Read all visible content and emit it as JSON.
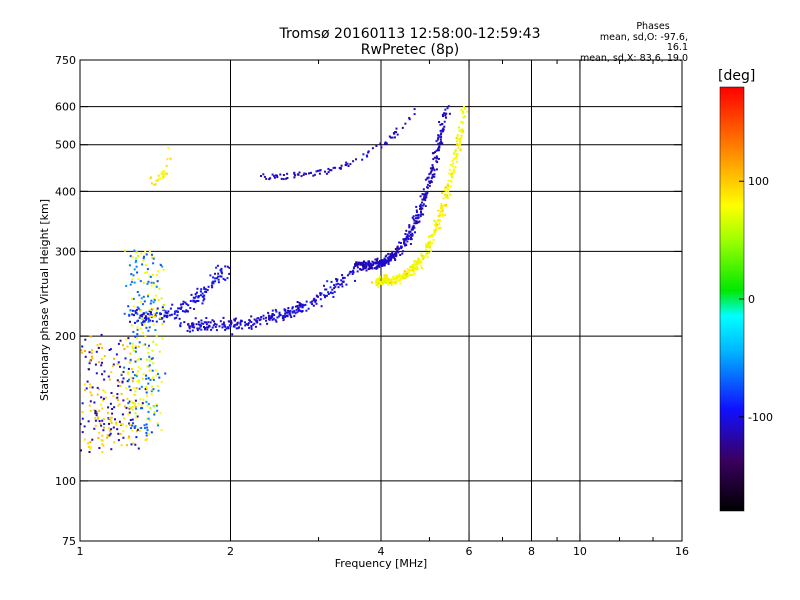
{
  "title": {
    "line1": "Tromsø 20160113 12:58:00-12:59:43",
    "line2": "RwPretec (8p)"
  },
  "phase_info": {
    "title": "Phases",
    "line_o": "mean, sd,O: -97.6, 16.1",
    "line_x": "mean, sd,X: 83.6, 19.0"
  },
  "colorbar": {
    "unit": "[deg]",
    "range": [
      -180,
      180
    ],
    "ticks": [
      {
        "value": 100,
        "label": "100"
      },
      {
        "value": 0,
        "label": "0"
      },
      {
        "value": -100,
        "label": "-100"
      }
    ]
  },
  "chart_data": {
    "type": "scatter",
    "xlabel": "Frequency [MHz]",
    "ylabel": "Stationary phase Virtual Height [km]",
    "xscale": "log",
    "yscale": "log",
    "xlim": [
      1,
      16
    ],
    "ylim": [
      75,
      750
    ],
    "xticks": [
      {
        "value": 1,
        "label": "1"
      },
      {
        "value": 2,
        "label": "2"
      },
      {
        "value": 4,
        "label": "4"
      },
      {
        "value": 6,
        "label": "6"
      },
      {
        "value": 8,
        "label": "8"
      },
      {
        "value": 10,
        "label": "10"
      },
      {
        "value": 16,
        "label": "16"
      }
    ],
    "yticks": [
      {
        "value": 75,
        "label": "75"
      },
      {
        "value": 100,
        "label": "100"
      },
      {
        "value": 200,
        "label": "200"
      },
      {
        "value": 300,
        "label": "300"
      },
      {
        "value": 400,
        "label": "400"
      },
      {
        "value": 500,
        "label": "500"
      },
      {
        "value": 600,
        "label": "600"
      },
      {
        "value": 750,
        "label": "750"
      }
    ],
    "vgrid": [
      2,
      4,
      6,
      8,
      10
    ],
    "hgrid": [
      100,
      200,
      300,
      400,
      500,
      600
    ],
    "xminor": [
      3,
      5,
      7,
      9,
      12,
      14
    ],
    "grid": true,
    "marker_color_encodes": "phase [deg]",
    "clusters": [
      {
        "mode": "O",
        "f_from": 1.6,
        "f_to": 3.6,
        "h_from": 210,
        "h_to": 280,
        "n": 300,
        "phase": -105,
        "spread": 0.05
      },
      {
        "mode": "O",
        "f_from": 3.6,
        "f_to": 5.4,
        "h_from": 280,
        "h_to": 600,
        "n": 380,
        "phase": -110,
        "spread": 0.035
      },
      {
        "mode": "O",
        "f_from": 2.3,
        "f_to": 4.7,
        "h_from": 430,
        "h_to": 590,
        "n": 90,
        "phase": -110,
        "spread": 0.03
      },
      {
        "mode": "X",
        "f_from": 3.9,
        "f_to": 5.9,
        "h_from": 260,
        "h_to": 600,
        "n": 360,
        "phase": 80,
        "spread": 0.035
      },
      {
        "mode": "O",
        "f_from": 1.28,
        "f_to": 1.95,
        "h_from": 220,
        "h_to": 280,
        "n": 170,
        "phase": -100,
        "spread": 0.07
      },
      {
        "mode": "mix",
        "f_from": 1.0,
        "f_to": 1.3,
        "h_from": 115,
        "h_to": 195,
        "n": 230,
        "phase": -110,
        "spread": 0.1
      },
      {
        "mode": "mix",
        "f_from": 1.25,
        "f_to": 1.45,
        "h_from": 125,
        "h_to": 300,
        "n": 280,
        "phase": 75,
        "spread": 0.06
      },
      {
        "mode": "O",
        "f_from": 1.4,
        "f_to": 1.52,
        "h_from": 420,
        "h_to": 500,
        "n": 25,
        "phase": 85,
        "spread": 0.03
      }
    ]
  }
}
